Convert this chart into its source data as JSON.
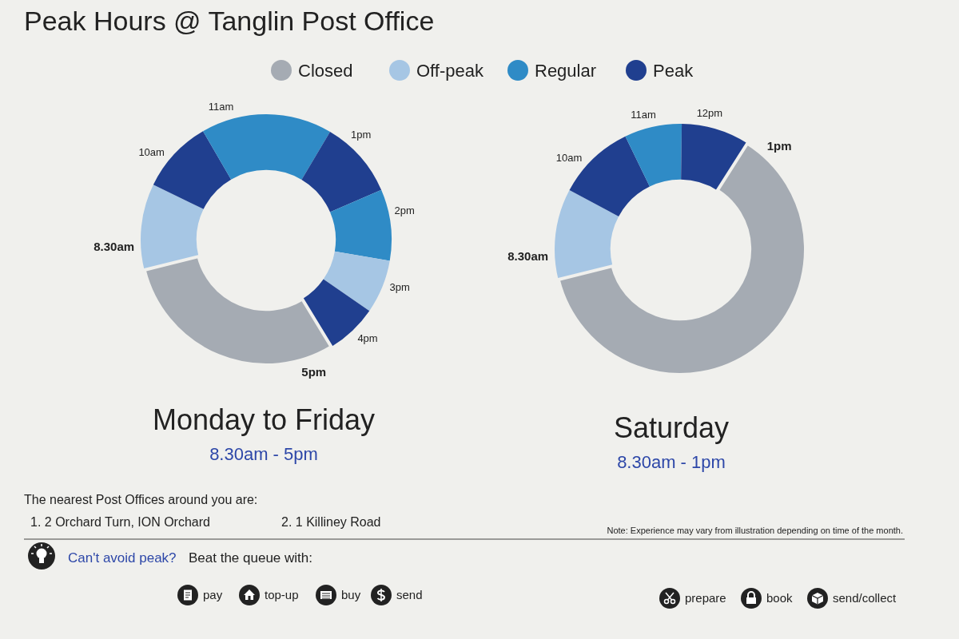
{
  "chart_data": [
    {
      "type": "other",
      "title": "Peak Hours @ Tanglin Post Office",
      "categories": [
        "Closed",
        "Off-peak",
        "Regular",
        "Peak"
      ],
      "colors": [
        "#a5abb3",
        "#a6c6e4",
        "#2f8bc6",
        "#203f8f"
      ]
    },
    {
      "type": "donut",
      "title": "Monday to Friday",
      "subtitle": "8.30am - 5pm",
      "categories": [
        "8.30am",
        "10am",
        "11am",
        "1pm",
        "2pm",
        "3pm",
        "4pm",
        "5pm"
      ],
      "values": [
        11.1,
        9.4,
        16.9,
        10.0,
        9.2,
        6.9,
        6.7,
        29.8
      ],
      "colors": [
        "#a6c6e4",
        "#203f8f",
        "#2f8bc6",
        "#203f8f",
        "#2f8bc6",
        "#a6c6e4",
        "#203f8f",
        "#a5abb3"
      ]
    },
    {
      "type": "donut",
      "title": "Saturday",
      "subtitle": "8.30am - 1pm",
      "categories": [
        "8.30am",
        "10am",
        "11am",
        "12pm",
        "1pm"
      ],
      "values": [
        11.7,
        10.0,
        7.4,
        8.8,
        62.1
      ],
      "colors": [
        "#a6c6e4",
        "#203f8f",
        "#2f8bc6",
        "#203f8f",
        "#a5abb3"
      ]
    },
    {
      "type": "other",
      "annotations": [
        "The nearest Post Offices around you are:",
        "1. 2 Orchard Turn, ION Orchard",
        "2. 1 Killiney Road",
        "Note: Experience may vary from illustration depending on time of the month.",
        "Can't avoid peak?",
        "Beat the queue with:",
        "pay",
        "top-up",
        "buy",
        "send",
        "prepare",
        "book",
        "send/collect"
      ]
    }
  ]
}
